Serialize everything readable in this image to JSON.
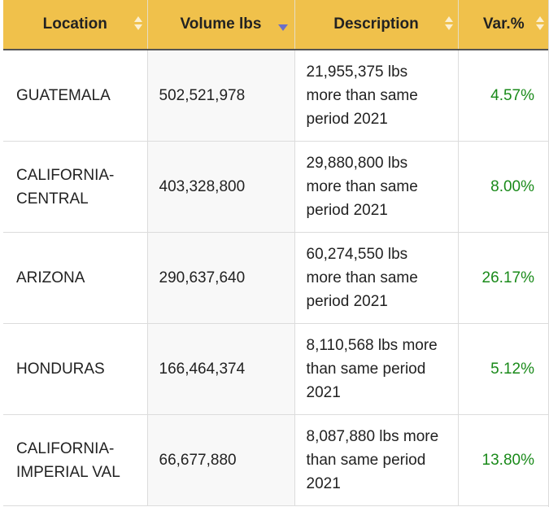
{
  "table": {
    "headers": [
      {
        "label": "Location",
        "sort": "both"
      },
      {
        "label": "Volume lbs",
        "sort": "desc"
      },
      {
        "label": "Description",
        "sort": "both"
      },
      {
        "label": "Var.%",
        "sort": "both"
      }
    ],
    "rows": [
      {
        "location": "GUATEMALA",
        "volume": "502,521,978",
        "description": "21,955,375 lbs more than same period 2021",
        "var": "4.57%"
      },
      {
        "location": "CALIFORNIA-CENTRAL",
        "volume": "403,328,800",
        "description": "29,880,800 lbs more than same period 2021",
        "var": "8.00%"
      },
      {
        "location": "ARIZONA",
        "volume": "290,637,640",
        "description": "60,274,550 lbs more than same period 2021",
        "var": "26.17%"
      },
      {
        "location": "HONDURAS",
        "volume": "166,464,374",
        "description": "8,110,568 lbs more than same period 2021",
        "var": "5.12%"
      },
      {
        "location": "CALIFORNIA-IMPERIAL VAL",
        "volume": "66,677,880",
        "description": "8,087,880 lbs more than same period 2021",
        "var": "13.80%"
      }
    ]
  },
  "colors": {
    "header_bg": "#f0c14b",
    "positive": "#1a8a1a",
    "sort_active": "#6b6fc7"
  }
}
